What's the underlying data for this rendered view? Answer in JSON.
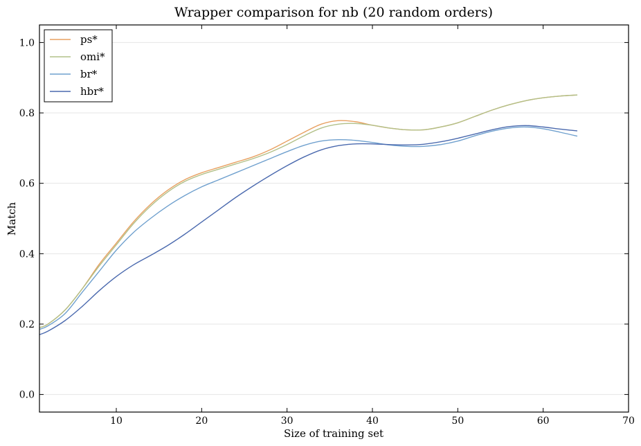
{
  "chart_data": {
    "type": "line",
    "title": "Wrapper comparison for nb (20 random orders)",
    "xlabel": "Size of training set",
    "ylabel": "Match",
    "xlim": [
      1,
      70
    ],
    "ylim": [
      -0.05,
      1.05
    ],
    "xticks": [
      10,
      20,
      30,
      40,
      50,
      60,
      70
    ],
    "yticks": [
      0.0,
      0.2,
      0.4,
      0.6,
      0.8,
      1.0
    ],
    "xtick_labels": [
      "10",
      "20",
      "30",
      "40",
      "50",
      "60",
      "70"
    ],
    "ytick_labels": [
      "0.0",
      "0.2",
      "0.4",
      "0.6",
      "0.8",
      "1.0"
    ],
    "grid": true,
    "legend_position": "top-left",
    "x": [
      1,
      2,
      4,
      6,
      8,
      10,
      12,
      14,
      16,
      18,
      20,
      22,
      24,
      26,
      28,
      30,
      32,
      34,
      36,
      38,
      40,
      42,
      44,
      46,
      48,
      50,
      52,
      54,
      56,
      58,
      60,
      62,
      64
    ],
    "series": [
      {
        "name": "ps*",
        "color": "#E8A060",
        "values": [
          0.19,
          0.2,
          0.24,
          0.3,
          0.37,
          0.43,
          0.49,
          0.54,
          0.58,
          0.61,
          0.63,
          0.645,
          0.66,
          0.675,
          0.695,
          0.72,
          0.745,
          0.768,
          0.778,
          0.775,
          0.765,
          0.757,
          0.752,
          0.752,
          0.76,
          0.772,
          0.79,
          0.808,
          0.823,
          0.835,
          0.843,
          0.848,
          0.851
        ]
      },
      {
        "name": "omi*",
        "color": "#B2C088",
        "values": [
          0.19,
          0.2,
          0.24,
          0.3,
          0.365,
          0.425,
          0.485,
          0.535,
          0.575,
          0.605,
          0.625,
          0.64,
          0.655,
          0.67,
          0.688,
          0.71,
          0.735,
          0.757,
          0.768,
          0.77,
          0.765,
          0.757,
          0.752,
          0.752,
          0.76,
          0.772,
          0.79,
          0.808,
          0.823,
          0.835,
          0.843,
          0.848,
          0.851
        ]
      },
      {
        "name": "br*",
        "color": "#6FA0CE",
        "values": [
          0.185,
          0.195,
          0.23,
          0.29,
          0.35,
          0.41,
          0.46,
          0.5,
          0.535,
          0.565,
          0.59,
          0.61,
          0.63,
          0.65,
          0.67,
          0.69,
          0.708,
          0.72,
          0.724,
          0.722,
          0.716,
          0.709,
          0.705,
          0.705,
          0.71,
          0.72,
          0.735,
          0.748,
          0.757,
          0.76,
          0.755,
          0.745,
          0.734
        ]
      },
      {
        "name": "hbr*",
        "color": "#4A69AE",
        "values": [
          0.17,
          0.18,
          0.21,
          0.25,
          0.295,
          0.335,
          0.368,
          0.395,
          0.423,
          0.455,
          0.49,
          0.525,
          0.56,
          0.592,
          0.622,
          0.65,
          0.675,
          0.695,
          0.707,
          0.712,
          0.712,
          0.71,
          0.709,
          0.711,
          0.718,
          0.728,
          0.74,
          0.752,
          0.761,
          0.764,
          0.76,
          0.754,
          0.749
        ]
      }
    ]
  }
}
